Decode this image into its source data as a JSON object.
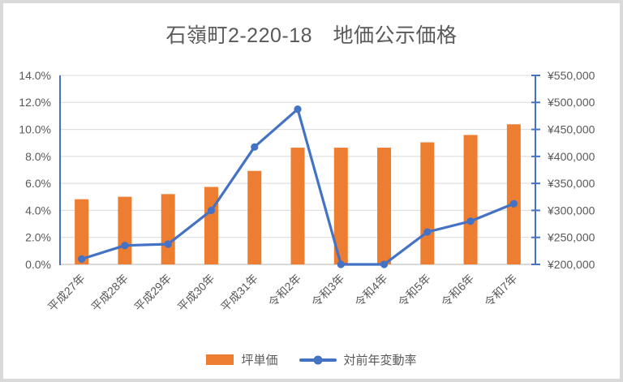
{
  "window": {
    "background": "#ffffff",
    "border_color": "#d9d9d9"
  },
  "chart_data": {
    "type": "combo-bar-line",
    "title": "石嶺町2-220-18　地価公示価格",
    "categories": [
      "平成27年",
      "平成28年",
      "平成29年",
      "平成30年",
      "平成31年",
      "令和2年",
      "令和3年",
      "令和4年",
      "令和5年",
      "令和6年",
      "令和7年"
    ],
    "series": [
      {
        "name": "坪単価",
        "chart_type": "bar",
        "axis": "right",
        "unit": "yen",
        "color": "#ED7D31",
        "values": [
          320700,
          325300,
          330200,
          343500,
          373200,
          416200,
          416200,
          416200,
          426100,
          439700,
          459500
        ]
      },
      {
        "name": "対前年変動率",
        "chart_type": "line",
        "axis": "left",
        "unit": "percent",
        "color": "#4472C4",
        "values": [
          0.4,
          1.4,
          1.5,
          4.0,
          8.7,
          11.5,
          0.0,
          0.0,
          2.4,
          3.2,
          4.5
        ]
      }
    ],
    "left_axis": {
      "unit": "percent",
      "min": 0,
      "max": 14,
      "step": 2,
      "tick_labels": [
        "0.0%",
        "2.0%",
        "4.0%",
        "6.0%",
        "8.0%",
        "10.0%",
        "12.0%",
        "14.0%"
      ]
    },
    "right_axis": {
      "unit": "yen",
      "min": 200000,
      "max": 550000,
      "step": 50000,
      "tick_labels": [
        "¥200,000",
        "¥250,000",
        "¥300,000",
        "¥350,000",
        "¥400,000",
        "¥450,000",
        "¥500,000",
        "¥550,000"
      ]
    },
    "grid": true,
    "legend_position": "bottom",
    "styles": {
      "gridline_color": "#d9d9d9",
      "baseline_color": "#d9d9d9",
      "axis_line_color": "#4472c4",
      "text_color": "#595959"
    }
  }
}
